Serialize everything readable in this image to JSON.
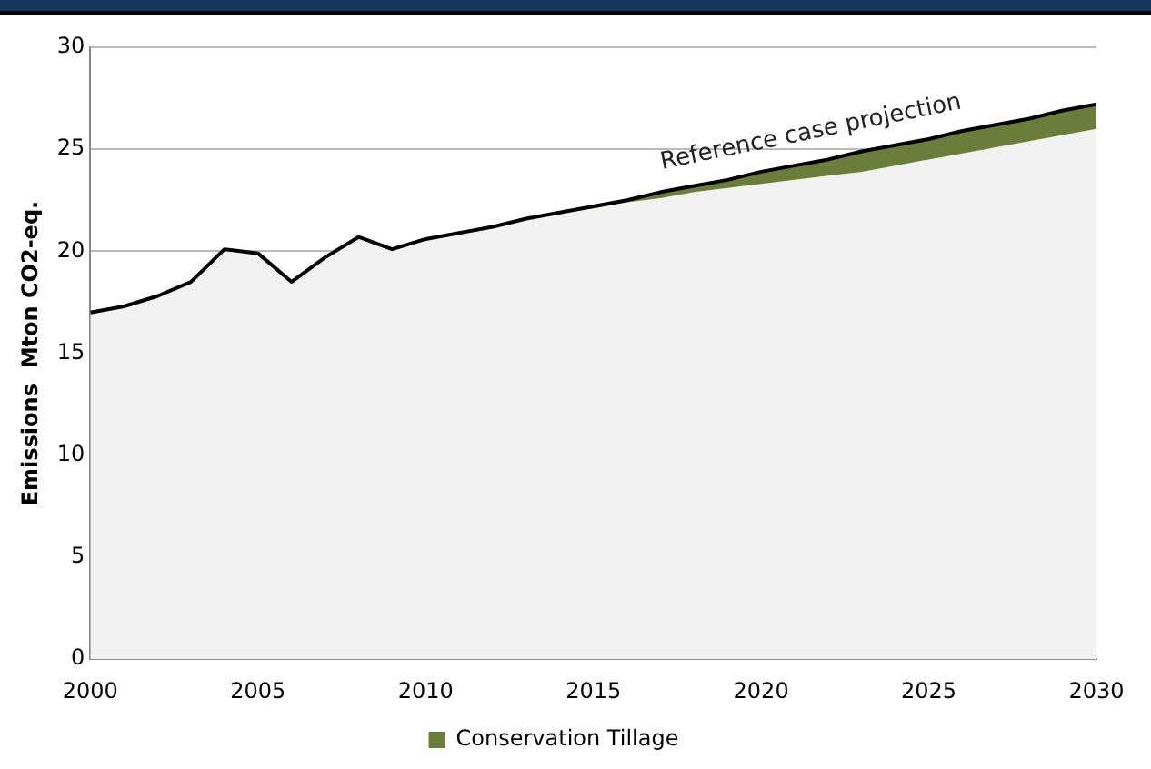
{
  "chart_data": {
    "type": "area",
    "ylabel": "Emissions  Mton CO2-eq.",
    "x": [
      2000,
      2001,
      2002,
      2003,
      2004,
      2005,
      2006,
      2007,
      2008,
      2009,
      2010,
      2011,
      2012,
      2013,
      2014,
      2015,
      2016,
      2017,
      2018,
      2019,
      2020,
      2021,
      2022,
      2023,
      2024,
      2025,
      2026,
      2027,
      2028,
      2029,
      2030
    ],
    "series": [
      {
        "color": "#f2f2f2",
        "values": [
          17.0,
          17.3,
          17.8,
          18.5,
          20.1,
          19.9,
          18.5,
          19.7,
          20.7,
          20.1,
          20.6,
          20.9,
          21.2,
          21.6,
          21.9,
          22.1,
          22.4,
          22.6,
          22.9,
          23.1,
          23.3,
          23.5,
          23.7,
          23.9,
          24.2,
          24.5,
          24.8,
          25.1,
          25.4,
          25.7,
          26.0
        ]
      },
      {
        "name": "Conservation Tillage",
        "color": "#6b7d3a",
        "values": [
          null,
          null,
          null,
          null,
          null,
          null,
          null,
          null,
          null,
          null,
          null,
          null,
          null,
          null,
          0,
          0.1,
          0.1,
          0.3,
          0.3,
          0.4,
          0.6,
          0.7,
          0.8,
          1.0,
          1.0,
          1.0,
          1.1,
          1.1,
          1.1,
          1.2,
          1.2
        ]
      },
      {
        "type": "line",
        "color": "#000000",
        "values": [
          17.0,
          17.3,
          17.8,
          18.5,
          20.1,
          19.9,
          18.5,
          19.7,
          20.7,
          20.1,
          20.6,
          20.9,
          21.2,
          21.6,
          21.9,
          22.2,
          22.5,
          22.9,
          23.2,
          23.5,
          23.9,
          24.2,
          24.5,
          24.9,
          25.2,
          25.5,
          25.9,
          26.2,
          26.5,
          26.9,
          27.2
        ]
      }
    ],
    "stacked": true,
    "xlim": [
      2000,
      2030
    ],
    "xticks": [
      2000,
      2005,
      2010,
      2015,
      2020,
      2025,
      2030
    ],
    "ylim": [
      0,
      30
    ],
    "yticks": [
      0,
      5,
      10,
      15,
      20,
      25,
      30
    ],
    "grid": "y",
    "legend": "bottom",
    "marker": "none",
    "annotations": [
      "Reference case projection"
    ]
  }
}
